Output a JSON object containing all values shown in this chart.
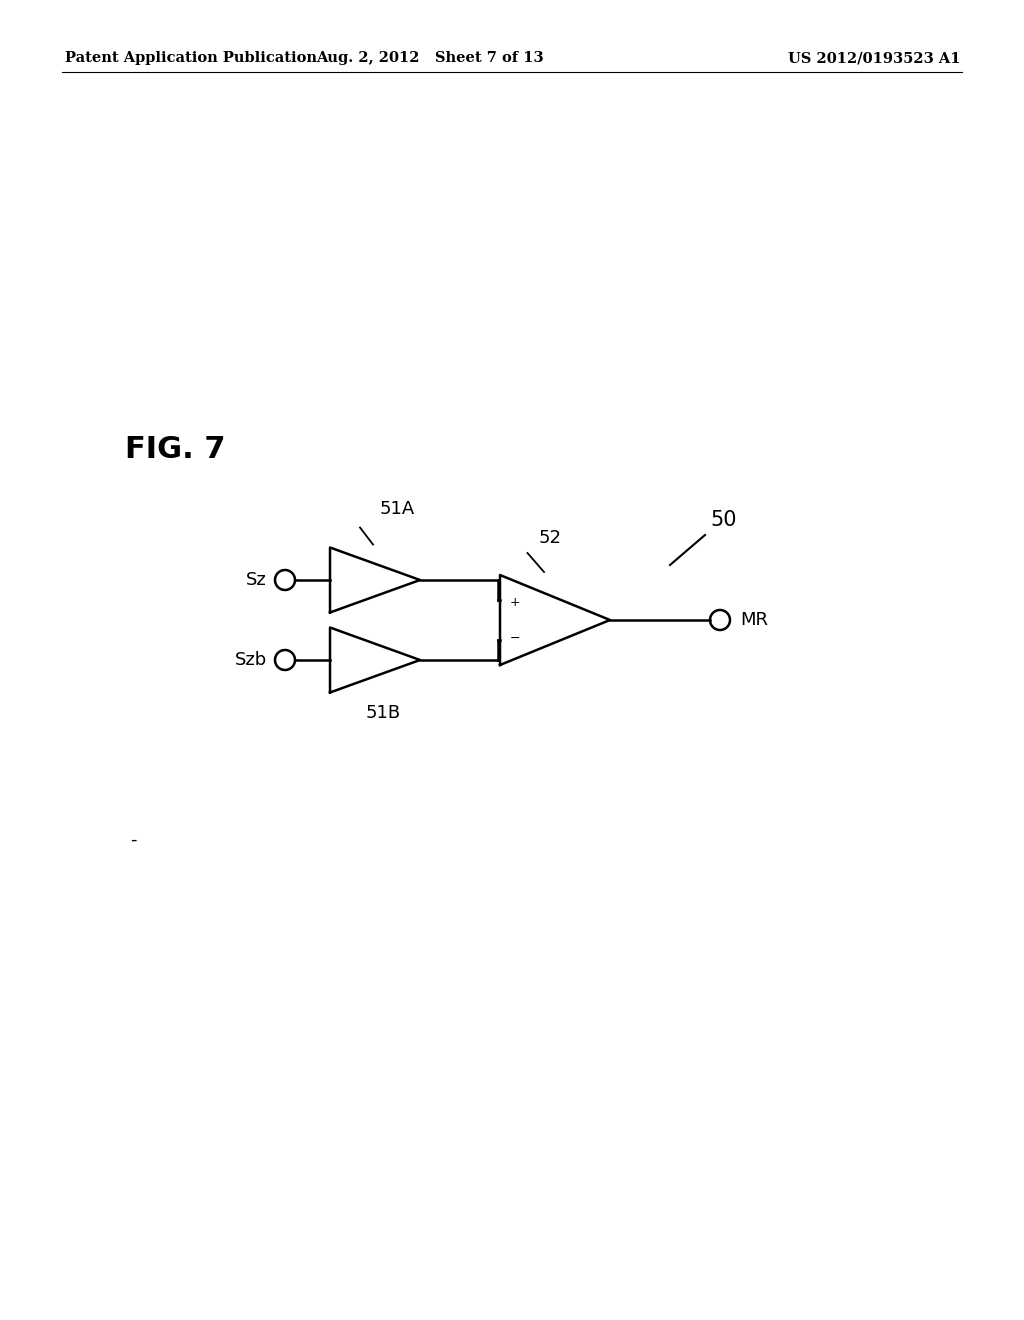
{
  "bg_color": "#ffffff",
  "text_color": "#000000",
  "header_left": "Patent Application Publication",
  "header_center": "Aug. 2, 2012   Sheet 7 of 13",
  "header_right": "US 2012/0193523 A1",
  "fig_label": "FIG. 7",
  "label_50": "50",
  "label_51A": "51A",
  "label_51B": "51B",
  "label_52": "52",
  "label_Sz": "Sz",
  "label_Szb": "Szb",
  "label_MR": "MR",
  "dash_label": "-",
  "line_width": 1.8,
  "font_size_header": 10.5,
  "font_size_fig": 22,
  "font_size_labels": 13,
  "font_size_plusminus": 9
}
